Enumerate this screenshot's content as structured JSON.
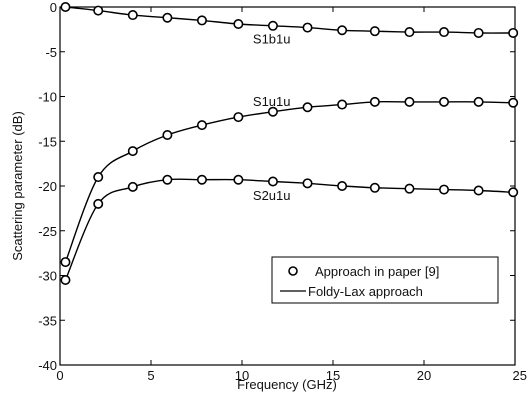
{
  "chart_data": {
    "type": "line",
    "xlabel": "Frequency (GHz)",
    "ylabel": "Scattering parameter (dB)",
    "xlim": [
      0,
      25
    ],
    "ylim": [
      -40,
      0
    ],
    "xticks": [
      0,
      5,
      10,
      15,
      20,
      25
    ],
    "yticks": [
      0,
      -5,
      -10,
      -15,
      -20,
      -25,
      -30,
      -35,
      -40
    ],
    "grid": false,
    "legend_position": "lower-right",
    "legend": [
      {
        "label": "Approach in paper [9]",
        "style": "marker"
      },
      {
        "label": "Foldy-Lax approach",
        "style": "line"
      }
    ],
    "series": [
      {
        "name": "S1b1u",
        "x": [
          0.3,
          2.1,
          4.0,
          5.9,
          7.8,
          9.8,
          11.7,
          13.6,
          15.5,
          17.3,
          19.2,
          21.1,
          23.0,
          24.9
        ],
        "y": [
          0.0,
          -0.4,
          -0.9,
          -1.2,
          -1.5,
          -1.9,
          -2.1,
          -2.3,
          -2.6,
          -2.7,
          -2.8,
          -2.8,
          -2.9,
          -2.9
        ]
      },
      {
        "name": "S1u1u",
        "x": [
          0.3,
          2.1,
          4.0,
          5.9,
          7.8,
          9.8,
          11.7,
          13.6,
          15.5,
          17.3,
          19.2,
          21.1,
          23.0,
          24.9
        ],
        "y": [
          -28.5,
          -19.0,
          -16.1,
          -14.3,
          -13.2,
          -12.3,
          -11.7,
          -11.2,
          -10.9,
          -10.6,
          -10.6,
          -10.6,
          -10.6,
          -10.7
        ]
      },
      {
        "name": "S2u1u",
        "x": [
          0.3,
          2.1,
          4.0,
          5.9,
          7.8,
          9.8,
          11.7,
          13.6,
          15.5,
          17.3,
          19.2,
          21.1,
          23.0,
          24.9
        ],
        "y": [
          -30.5,
          -22.0,
          -20.1,
          -19.3,
          -19.3,
          -19.3,
          -19.5,
          -19.7,
          -20.0,
          -20.2,
          -20.3,
          -20.4,
          -20.5,
          -20.7
        ]
      }
    ],
    "annotations": [
      {
        "text": "S1b1u",
        "x": 10.6,
        "y": -3.5
      },
      {
        "text": "S1u1u",
        "x": 10.6,
        "y": -10.5
      },
      {
        "text": "S2u1u",
        "x": 10.6,
        "y": -21.0
      }
    ]
  }
}
